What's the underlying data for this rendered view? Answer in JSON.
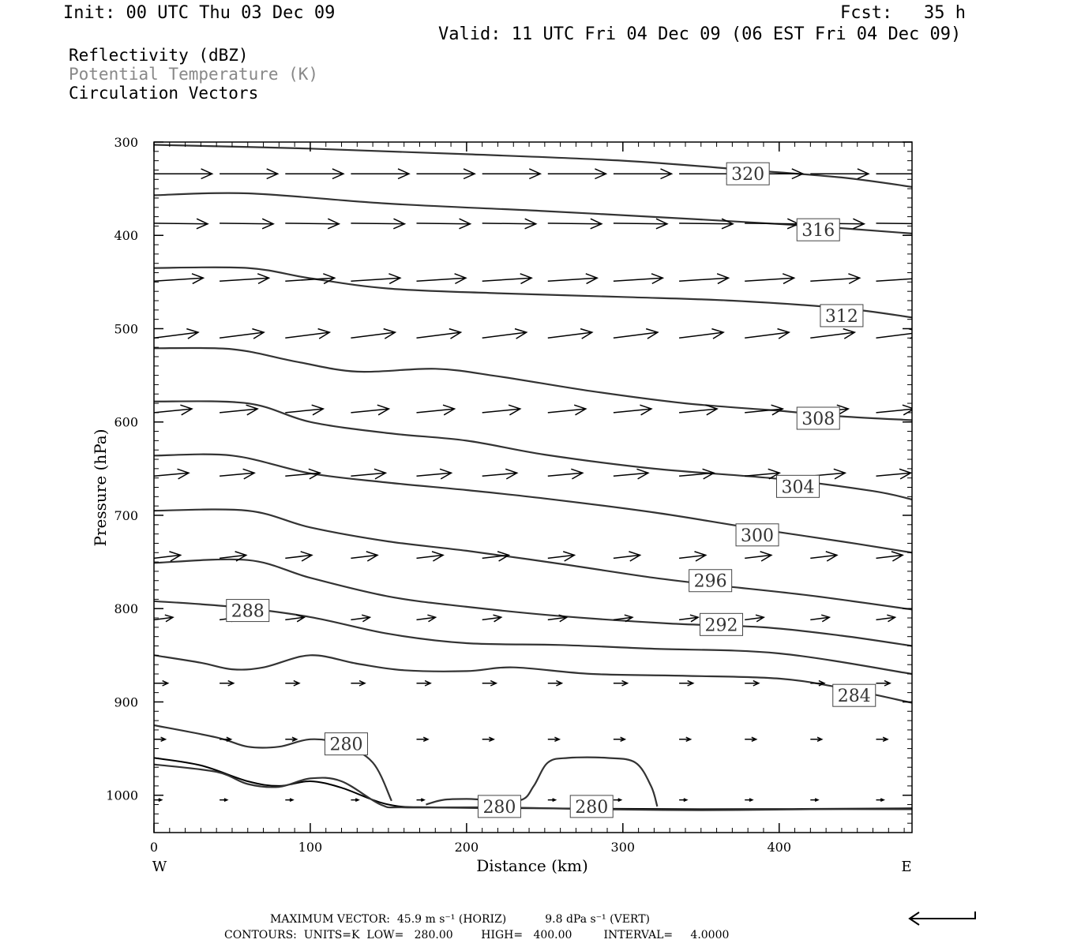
{
  "header": {
    "init": "Init: 00 UTC Thu 03 Dec 09",
    "fcst": "Fcst:   35 h",
    "valid": "Valid: 11 UTC Fri 04 Dec 09 (06 EST Fri 04 Dec 09)"
  },
  "legend": {
    "field1": "Reflectivity (dBZ)",
    "field2": "Potential Temperature (K)",
    "field3": "Circulation Vectors"
  },
  "colors": {
    "field2": "#888888",
    "ink": "#000000",
    "contour": "#333333"
  },
  "chart_data": {
    "type": "contour",
    "xlabel": "Distance (km)",
    "ylabel": "Pressure (hPa)",
    "xlim": [
      0,
      485
    ],
    "ylim": [
      300,
      1040
    ],
    "y_axis_reversed": true,
    "xticks": [
      0,
      100,
      200,
      300,
      400
    ],
    "yticks": [
      300,
      400,
      500,
      600,
      700,
      800,
      900,
      1000
    ],
    "x_end_labels": {
      "left": "W",
      "right": "E"
    },
    "contours": [
      {
        "level": 320,
        "label_at": [
          380,
          334
        ],
        "points": [
          [
            0,
            303
          ],
          [
            100,
            307
          ],
          [
            200,
            313
          ],
          [
            300,
            320
          ],
          [
            380,
            330
          ],
          [
            440,
            338
          ],
          [
            485,
            348
          ]
        ]
      },
      {
        "level": 316,
        "label_at": [
          425,
          394
        ],
        "points": [
          [
            0,
            357
          ],
          [
            60,
            355
          ],
          [
            150,
            366
          ],
          [
            250,
            374
          ],
          [
            350,
            383
          ],
          [
            420,
            390
          ],
          [
            485,
            398
          ]
        ]
      },
      {
        "level": 312,
        "label_at": [
          440,
          486
        ],
        "points": [
          [
            0,
            435
          ],
          [
            60,
            435
          ],
          [
            100,
            446
          ],
          [
            150,
            457
          ],
          [
            220,
            462
          ],
          [
            300,
            466
          ],
          [
            370,
            470
          ],
          [
            440,
            478
          ],
          [
            485,
            488
          ]
        ]
      },
      {
        "level": 308,
        "label_at": [
          425,
          596
        ],
        "points": [
          [
            0,
            521
          ],
          [
            50,
            522
          ],
          [
            90,
            535
          ],
          [
            130,
            546
          ],
          [
            180,
            543
          ],
          [
            220,
            551
          ],
          [
            280,
            567
          ],
          [
            340,
            580
          ],
          [
            400,
            588
          ],
          [
            440,
            594
          ],
          [
            485,
            598
          ]
        ]
      },
      {
        "level": 304,
        "label_at": [
          412,
          669
        ],
        "points": [
          [
            0,
            578
          ],
          [
            60,
            580
          ],
          [
            100,
            600
          ],
          [
            150,
            612
          ],
          [
            200,
            620
          ],
          [
            250,
            635
          ],
          [
            320,
            650
          ],
          [
            400,
            661
          ],
          [
            460,
            674
          ],
          [
            485,
            683
          ]
        ]
      },
      {
        "level": 300,
        "label_at": [
          386,
          721
        ],
        "points": [
          [
            0,
            636
          ],
          [
            50,
            636
          ],
          [
            100,
            655
          ],
          [
            150,
            665
          ],
          [
            200,
            673
          ],
          [
            250,
            682
          ],
          [
            320,
            697
          ],
          [
            380,
            713
          ],
          [
            440,
            728
          ],
          [
            485,
            740
          ]
        ]
      },
      {
        "level": 296,
        "label_at": [
          356,
          770
        ],
        "points": [
          [
            0,
            695
          ],
          [
            60,
            695
          ],
          [
            100,
            713
          ],
          [
            150,
            728
          ],
          [
            200,
            738
          ],
          [
            260,
            752
          ],
          [
            320,
            767
          ],
          [
            360,
            775
          ],
          [
            420,
            786
          ],
          [
            485,
            801
          ]
        ]
      },
      {
        "level": 292,
        "label_at": [
          363,
          817
        ],
        "points": [
          [
            0,
            751
          ],
          [
            60,
            748
          ],
          [
            100,
            767
          ],
          [
            150,
            787
          ],
          [
            200,
            798
          ],
          [
            260,
            808
          ],
          [
            330,
            816
          ],
          [
            390,
            820
          ],
          [
            440,
            829
          ],
          [
            485,
            840
          ]
        ]
      },
      {
        "level": 288,
        "label_at": [
          60,
          802
        ],
        "points": [
          [
            0,
            792
          ],
          [
            50,
            798
          ],
          [
            100,
            809
          ],
          [
            150,
            827
          ],
          [
            200,
            837
          ],
          [
            260,
            839
          ],
          [
            320,
            843
          ],
          [
            400,
            848
          ],
          [
            485,
            870
          ]
        ]
      },
      {
        "level": 284,
        "label_at": [
          448,
          893
        ],
        "points": [
          [
            0,
            850
          ],
          [
            30,
            858
          ],
          [
            50,
            865
          ],
          [
            70,
            863
          ],
          [
            100,
            850
          ],
          [
            130,
            859
          ],
          [
            160,
            866
          ],
          [
            200,
            867
          ],
          [
            230,
            863
          ],
          [
            280,
            870
          ],
          [
            340,
            872
          ],
          [
            400,
            875
          ],
          [
            440,
            885
          ],
          [
            485,
            901
          ]
        ]
      },
      {
        "level": 280,
        "label_at": [
          123,
          945
        ],
        "points": [
          [
            0,
            925
          ],
          [
            40,
            938
          ],
          [
            60,
            948
          ],
          [
            80,
            948
          ],
          [
            100,
            940
          ],
          [
            120,
            945
          ],
          [
            140,
            965
          ],
          [
            152,
            1006
          ]
        ]
      },
      {
        "level": 280,
        "label_at": [
          221,
          1012
        ],
        "points": [
          [
            174,
            1010
          ],
          [
            185,
            1005
          ],
          [
            200,
            1004
          ],
          [
            215,
            1005
          ],
          [
            235,
            1005
          ],
          [
            243,
            990
          ],
          [
            252,
            965
          ],
          [
            265,
            960
          ],
          [
            290,
            960
          ],
          [
            308,
            965
          ],
          [
            318,
            990
          ],
          [
            322,
            1012
          ]
        ]
      },
      {
        "level": 280,
        "label_at": [
          280,
          1012
        ],
        "points": [
          [
            0,
            967
          ],
          [
            40,
            975
          ],
          [
            60,
            988
          ],
          [
            80,
            991
          ],
          [
            100,
            982
          ],
          [
            120,
            985
          ],
          [
            145,
            1010
          ],
          [
            160,
            1013
          ],
          [
            220,
            1013
          ],
          [
            280,
            1015
          ],
          [
            350,
            1016
          ],
          [
            420,
            1015
          ],
          [
            485,
            1015
          ]
        ]
      }
    ],
    "surface_pressure_hpa": [
      [
        0,
        960
      ],
      [
        30,
        968
      ],
      [
        60,
        985
      ],
      [
        80,
        990
      ],
      [
        100,
        985
      ],
      [
        120,
        992
      ],
      [
        150,
        1010
      ],
      [
        180,
        1013
      ],
      [
        250,
        1014
      ],
      [
        350,
        1015
      ],
      [
        485,
        1014
      ]
    ],
    "vector_rows": [
      {
        "p": 334,
        "u": 0.92,
        "w": 0
      },
      {
        "p": 387,
        "u": 0.85,
        "w": 0.01
      },
      {
        "p": 449,
        "u": 0.78,
        "w": -0.05
      },
      {
        "p": 510,
        "u": 0.7,
        "w": -0.09
      },
      {
        "p": 590,
        "u": 0.6,
        "w": -0.06
      },
      {
        "p": 658,
        "u": 0.55,
        "w": -0.05
      },
      {
        "p": 746,
        "u": 0.42,
        "w": -0.05
      },
      {
        "p": 812,
        "u": 0.3,
        "w": -0.04
      },
      {
        "p": 880,
        "u": 0.22,
        "w": 0
      },
      {
        "p": 940,
        "u": 0.18,
        "w": 0
      },
      {
        "p": 1005,
        "u": 0.12,
        "w": 0
      }
    ],
    "vector_x_positions_km": [
      0,
      42,
      84,
      126,
      168,
      210,
      252,
      294,
      336,
      378,
      420,
      462
    ]
  },
  "footer": {
    "max_vector": "MAXIMUM VECTOR:  45.9 m s⁻¹ (HORIZ)           9.8 dPa s⁻¹ (VERT)",
    "contours": "CONTOURS:  UNITS=K  LOW=   280.00        HIGH=   400.00         INTERVAL=     4.0000"
  }
}
